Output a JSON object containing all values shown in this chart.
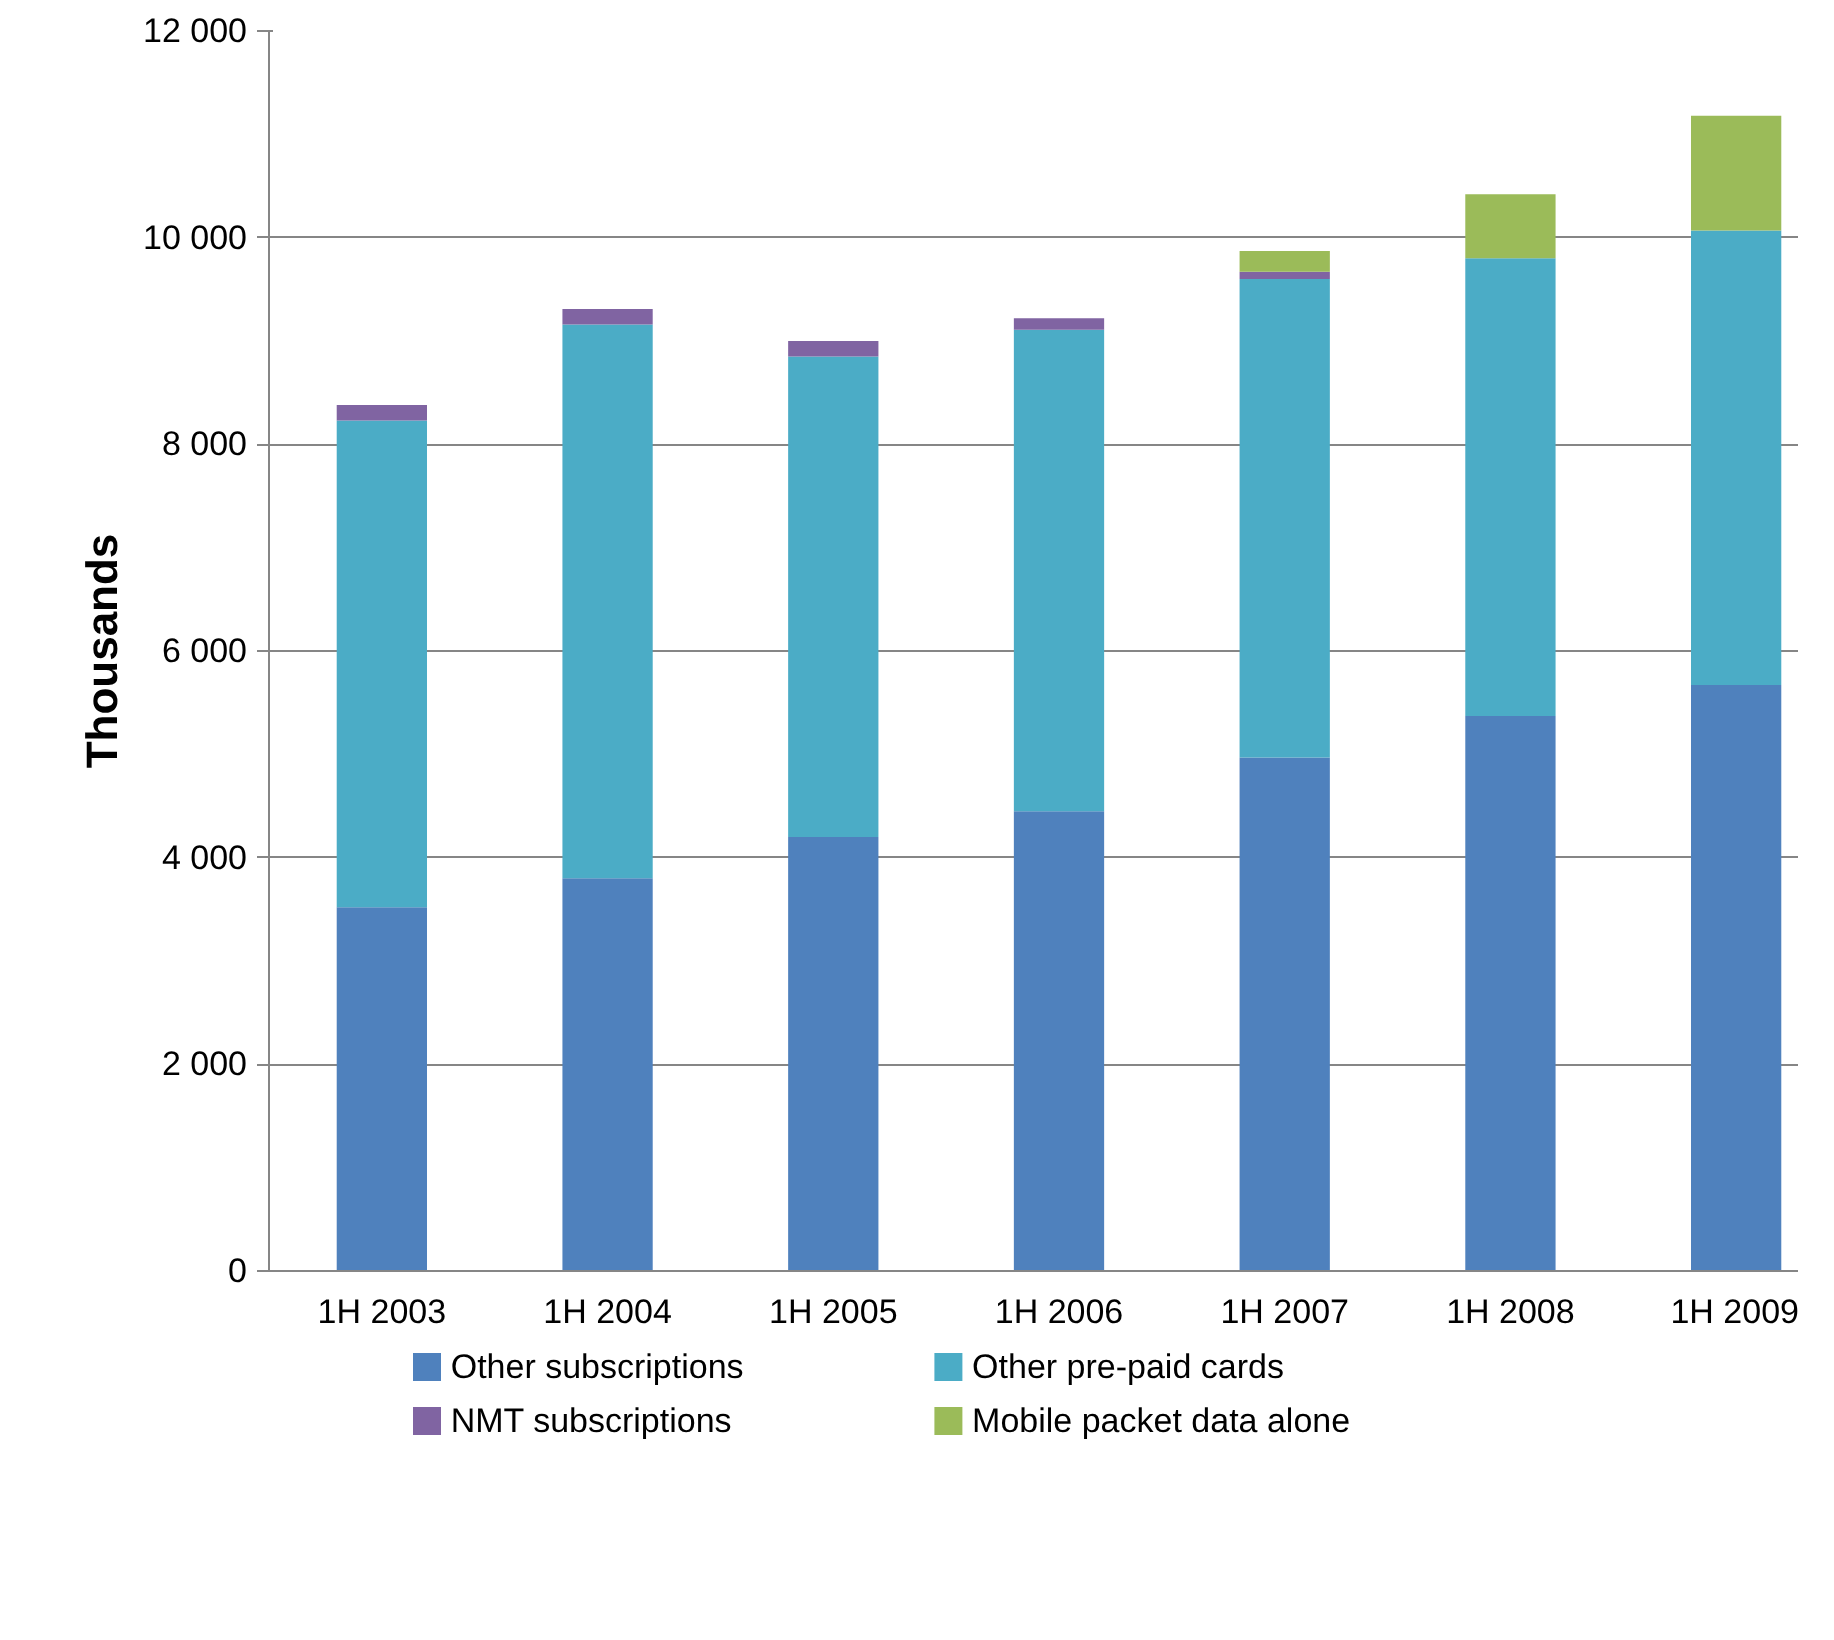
{
  "chart_data": {
    "type": "bar",
    "stacked": true,
    "ylabel": "Thousands",
    "categories": [
      "1H 2003",
      "1H 2004",
      "1H 2005",
      "1H 2006",
      "1H 2007",
      "1H 2008",
      "1H 2009"
    ],
    "series": [
      {
        "name": "Other subscriptions",
        "color": "#4f81bd",
        "values": [
          3520,
          3800,
          4200,
          4450,
          4970,
          5370,
          5670
        ]
      },
      {
        "name": "Other pre-paid cards",
        "color": "#4bacc6",
        "values": [
          4710,
          5360,
          4650,
          4660,
          4630,
          4430,
          4400
        ]
      },
      {
        "name": "NMT subscriptions",
        "color": "#8064a2",
        "values": [
          150,
          150,
          150,
          110,
          70,
          null,
          null
        ]
      },
      {
        "name": "Mobile packet data alone",
        "color": "#9bbb59",
        "values": [
          null,
          null,
          null,
          null,
          200,
          620,
          1110
        ]
      }
    ],
    "ylim": [
      0,
      12000
    ],
    "yticks": [
      {
        "value": 0,
        "label": "0"
      },
      {
        "value": 2000,
        "label": "2 000"
      },
      {
        "value": 4000,
        "label": "4 000"
      },
      {
        "value": 6000,
        "label": "6 000"
      },
      {
        "value": 8000,
        "label": "8 000"
      },
      {
        "value": 10000,
        "label": "10 000"
      },
      {
        "value": 12000,
        "label": "12 000"
      }
    ],
    "grid": "y",
    "legend": "bottom"
  }
}
